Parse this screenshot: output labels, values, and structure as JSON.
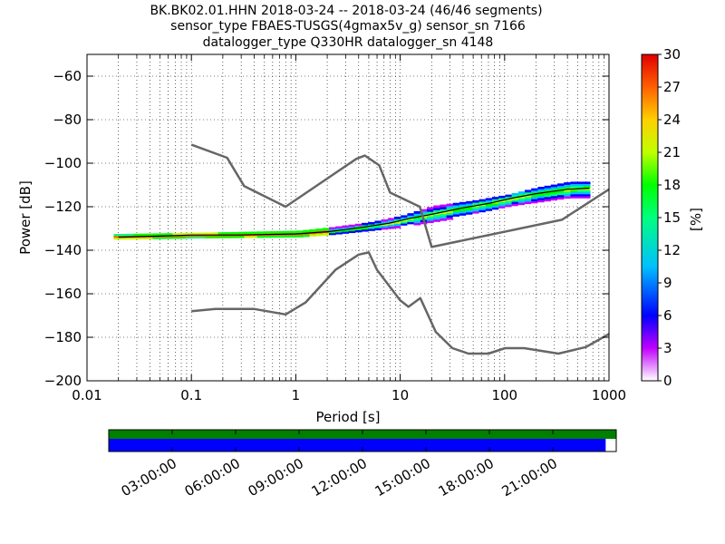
{
  "title_lines": [
    "BK.BK02.01.HHN   2018-03-24 -- 2018-03-24  (46/46 segments)",
    "sensor_type FBAES-TUSGS(4gmax5v_g) sensor_sn 7166",
    "datalogger_type Q330HR datalogger_sn 4148"
  ],
  "chart_data": {
    "type": "heatmap",
    "x_scale": "log",
    "xlabel": "Period [s]",
    "ylabel": "Power [dB]",
    "xlim": [
      0.01,
      1000
    ],
    "ylim": [
      -200,
      -50
    ],
    "x_ticks": [
      0.01,
      0.1,
      1,
      10,
      100,
      1000
    ],
    "x_tick_labels": [
      "0.01",
      "0.1",
      "1",
      "10",
      "100",
      "1000"
    ],
    "y_ticks": [
      -200,
      -180,
      -160,
      -140,
      -120,
      -100,
      -80,
      -60
    ],
    "y_tick_labels": [
      "−200",
      "−180",
      "−160",
      "−140",
      "−120",
      "−100",
      "−80",
      "−60"
    ],
    "grid": "dotted",
    "colorbar": {
      "label": "[%]",
      "range": [
        0,
        30
      ],
      "ticks": [
        0,
        3,
        6,
        9,
        12,
        15,
        18,
        21,
        24,
        27,
        30
      ],
      "tick_labels": [
        "0",
        "3",
        "6",
        "9",
        "12",
        "15",
        "18",
        "21",
        "24",
        "27",
        "30"
      ]
    },
    "noise_models": [
      {
        "points": [
          [
            0.1,
            -91.5
          ],
          [
            0.22,
            -97.5
          ],
          [
            0.32,
            -110.5
          ],
          [
            0.8,
            -120
          ],
          [
            3.8,
            -98
          ],
          [
            4.6,
            -96.5
          ],
          [
            6.3,
            -101
          ],
          [
            8,
            -113.5
          ],
          [
            15.4,
            -120
          ],
          [
            20,
            -138.5
          ],
          [
            354,
            -126
          ],
          [
            1000,
            -112
          ]
        ]
      },
      {
        "points": [
          [
            0.1,
            -168
          ],
          [
            0.17,
            -167
          ],
          [
            0.4,
            -167
          ],
          [
            0.8,
            -169.5
          ],
          [
            1.24,
            -164
          ],
          [
            2.4,
            -149
          ],
          [
            4,
            -142
          ],
          [
            5,
            -141
          ],
          [
            6,
            -149
          ],
          [
            10,
            -163
          ],
          [
            12,
            -166
          ],
          [
            15.6,
            -162
          ],
          [
            21.9,
            -177.5
          ],
          [
            31.6,
            -185
          ],
          [
            45,
            -187.5
          ],
          [
            70,
            -187.5
          ],
          [
            101,
            -185
          ],
          [
            154,
            -185
          ],
          [
            328,
            -187.5
          ],
          [
            600,
            -184.5
          ],
          [
            1000,
            -178.5
          ]
        ]
      }
    ],
    "mode_curve": [
      [
        0.02,
        -134
      ],
      [
        0.05,
        -133.5
      ],
      [
        0.1,
        -133
      ],
      [
        0.3,
        -133
      ],
      [
        1,
        -132.5
      ],
      [
        2,
        -131.5
      ],
      [
        3,
        -130.5
      ],
      [
        5,
        -129
      ],
      [
        8,
        -127.5
      ],
      [
        12,
        -125.5
      ],
      [
        20,
        -123.5
      ],
      [
        40,
        -120.5
      ],
      [
        70,
        -118.5
      ],
      [
        120,
        -116
      ],
      [
        200,
        -114
      ],
      [
        400,
        -112
      ],
      [
        650,
        -111.5
      ]
    ],
    "lower_bound": [
      [
        0.02,
        -135
      ],
      [
        0.1,
        -134.5
      ],
      [
        1,
        -134
      ],
      [
        2,
        -133
      ],
      [
        5,
        -131
      ],
      [
        10,
        -129.5
      ],
      [
        20,
        -127
      ],
      [
        50,
        -124
      ],
      [
        100,
        -121
      ],
      [
        200,
        -119
      ],
      [
        400,
        -117
      ],
      [
        650,
        -117
      ]
    ],
    "upper_bound": [
      [
        0.02,
        -132.5
      ],
      [
        0.1,
        -132
      ],
      [
        1,
        -131
      ],
      [
        2,
        -129.5
      ],
      [
        5,
        -127
      ],
      [
        10,
        -124
      ],
      [
        20,
        -119.5
      ],
      [
        50,
        -117
      ],
      [
        100,
        -114.5
      ],
      [
        200,
        -111
      ],
      [
        400,
        -108.5
      ],
      [
        650,
        -108.5
      ]
    ]
  },
  "timeline": {
    "tick_labels": [
      "03:00:00",
      "06:00:00",
      "09:00:00",
      "12:00:00",
      "15:00:00",
      "18:00:00",
      "21:00:00"
    ],
    "tick_hours": [
      3,
      6,
      9,
      12,
      15,
      18,
      21
    ],
    "coverage_end_hour": 23.5,
    "colors": {
      "top_band": "#008000",
      "bottom_band": "#0000ff"
    }
  }
}
